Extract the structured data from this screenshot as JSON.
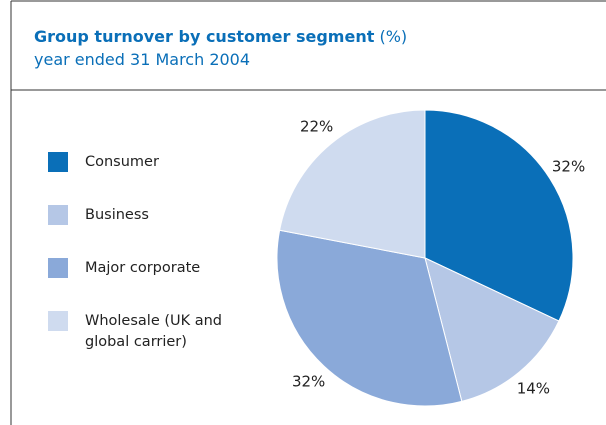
{
  "chart_data": {
    "type": "pie",
    "title": "Group turnover by customer segment",
    "title_unit": "(%)",
    "subtitle": "year ended 31 March 2004",
    "categories": [
      "Consumer",
      "Business",
      "Major corporate",
      "Wholesale (UK and global carrier)"
    ],
    "values": [
      32,
      14,
      32,
      22
    ],
    "value_labels": [
      "32%",
      "14%",
      "32%",
      "22%"
    ],
    "colors": [
      "#0a6fb8",
      "#b5c7e6",
      "#8aa9d9",
      "#cfdbef"
    ],
    "legend": "left"
  }
}
